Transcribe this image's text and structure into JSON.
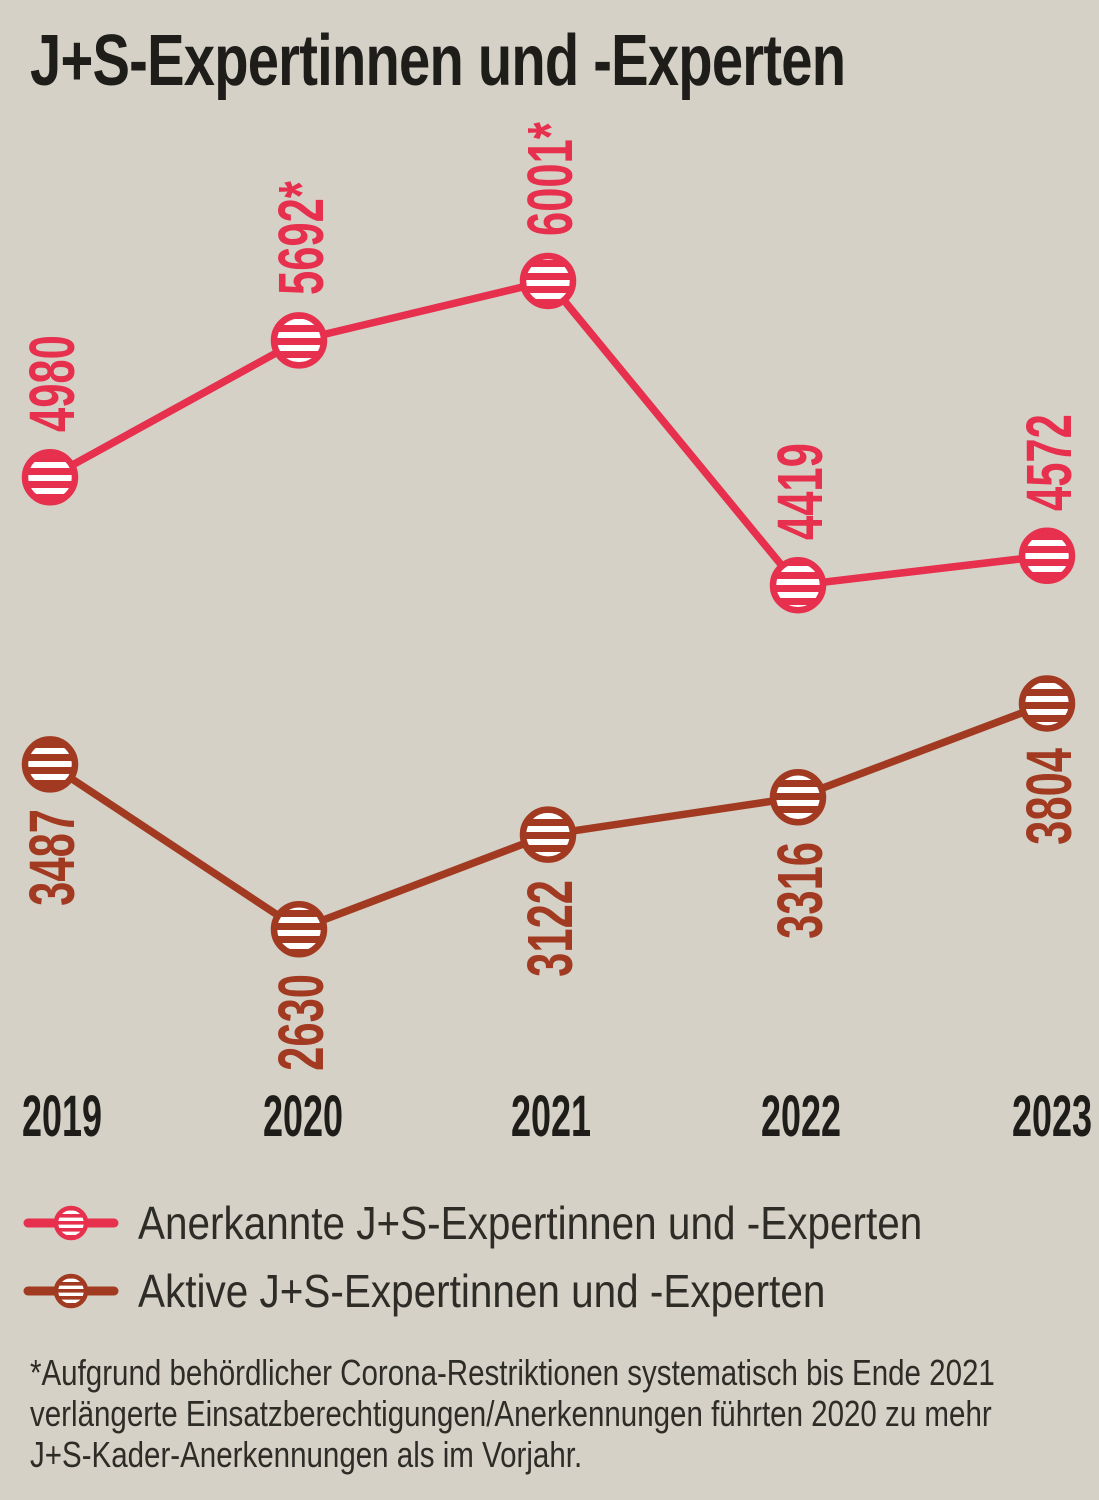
{
  "title": "J+S-Expertinnen und -Experten",
  "background_color": "#d5d1c6",
  "chart_data": {
    "type": "line",
    "x": [
      "2019",
      "2020",
      "2021",
      "2022",
      "2023"
    ],
    "series": [
      {
        "name": "Anerkannte J+S-Expertinnen und -Experten",
        "color": "#e6304d",
        "values": [
          4980,
          5692,
          6001,
          4419,
          4572
        ],
        "display_labels": [
          "4980",
          "5692*",
          "6001*",
          "4419",
          "4572"
        ],
        "label_position": "above"
      },
      {
        "name": "Aktive J+S-Expertinnen und -Experten",
        "color": "#a23a22",
        "values": [
          3487,
          2630,
          3122,
          3316,
          3804
        ],
        "display_labels": [
          "3487",
          "2630",
          "3122",
          "3316",
          "3804"
        ],
        "label_position": "below"
      }
    ],
    "marker": "striped-circle",
    "grid": false,
    "legend_position": "bottom",
    "value_labels_rotated": true
  },
  "footnote": {
    "lines": [
      "*Aufgrund behördlicher Corona-Restriktionen systematisch bis Ende 2021",
      "verlängerte Einsatzberechtigungen/Anerkennungen führten 2020 zu mehr",
      "J+S-Kader-Anerkennungen als im Vorjahr."
    ]
  }
}
